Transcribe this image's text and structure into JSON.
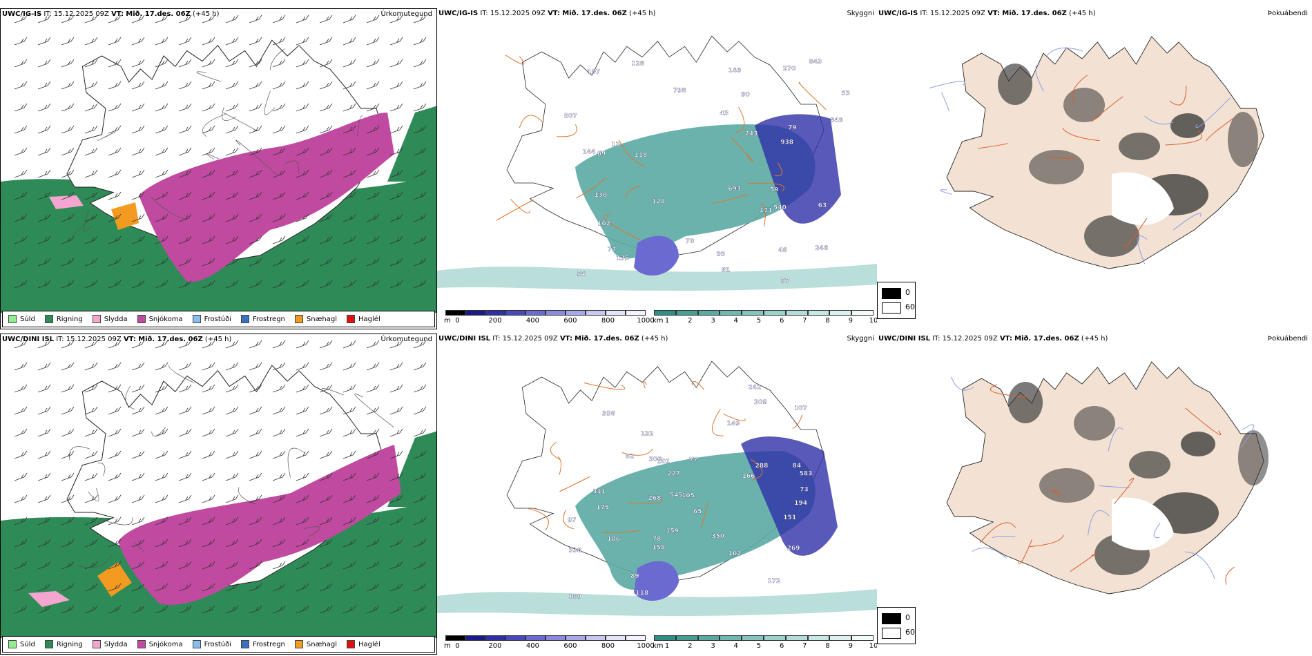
{
  "legend_items": [
    {
      "label": "Súld",
      "color": "#90ee90"
    },
    {
      "label": "Rigning",
      "color": "#2e8b57"
    },
    {
      "label": "Slydda",
      "color": "#f4a6d0"
    },
    {
      "label": "Snjókoma",
      "color": "#c04aa0"
    },
    {
      "label": "Frostúði",
      "color": "#87bdf0"
    },
    {
      "label": "Frostregn",
      "color": "#3a6fc4"
    },
    {
      "label": "Snæhagl",
      "color": "#f39a20"
    },
    {
      "label": "Haglél",
      "color": "#e01010"
    }
  ],
  "rows": [
    {
      "model": "UWC/IG-IS",
      "it_label": "IT:",
      "it": "15.12.2025 09Z",
      "vt_label": "VT:",
      "vt": "Mið. 17.des. 06Z",
      "lead": "(+45 h)",
      "titles": {
        "precip": "Úrkomutegund",
        "cloud": "Skyggni",
        "fog": "Þokuábendi"
      },
      "cloud_labels": [
        "128",
        "90",
        "81",
        "938",
        "693",
        "270",
        "849",
        "243",
        "135",
        "107",
        "102",
        "77",
        "149",
        "798",
        "507",
        "59",
        "46",
        "144",
        "843",
        "43",
        "171",
        "128",
        "130",
        "13",
        "70",
        "79",
        "246",
        "95",
        "63",
        "69",
        "53",
        "57",
        "118",
        "54",
        "540"
      ]
    },
    {
      "model": "UWC/DINI ISL",
      "it_label": "IT:",
      "it": "15.12.2025 09Z",
      "vt_label": "VT:",
      "vt": "Mið. 17.des. 06Z",
      "lead": "(+45 h)",
      "titles": {
        "precip": "Úrkomutegund",
        "cloud": "Skyggni",
        "fog": "Þokuábendi"
      },
      "cloud_labels": [
        "78",
        "102",
        "101",
        "118",
        "77",
        "583",
        "268",
        "350",
        "300",
        "269",
        "356",
        "311",
        "189",
        "242",
        "149",
        "545",
        "159",
        "338",
        "186",
        "166",
        "194",
        "172",
        "151",
        "89",
        "227",
        "175",
        "209",
        "65",
        "97",
        "105",
        "158",
        "107",
        "73",
        "132",
        "84",
        "82",
        "288"
      ]
    }
  ],
  "cloud_colorbar": {
    "unit": "m",
    "ticks": [
      "0",
      "200",
      "400",
      "600",
      "800",
      "1000"
    ],
    "colors": [
      "#000000",
      "#1a1a8c",
      "#2f2fa8",
      "#4848bf",
      "#6a6ad0",
      "#8a8adf",
      "#a9a9e9",
      "#c7c7f2",
      "#e3e3fa",
      "#f3f3ff"
    ]
  },
  "vis_colorbar": {
    "unit": "km",
    "ticks": [
      "1",
      "2",
      "3",
      "4",
      "5",
      "6",
      "7",
      "8",
      "9",
      "10"
    ],
    "colors": [
      "#2f8f84",
      "#459d93",
      "#5aaaa2",
      "#70b8b1",
      "#86c5bf",
      "#9cd2cc",
      "#b2ddd9",
      "#c8e8e5",
      "#ddf2f0",
      "#f2fbfa"
    ]
  },
  "fog_legend": {
    "items": [
      {
        "label": "0",
        "color": "#000000"
      },
      {
        "label": "60",
        "color": "#ffffff"
      }
    ]
  }
}
